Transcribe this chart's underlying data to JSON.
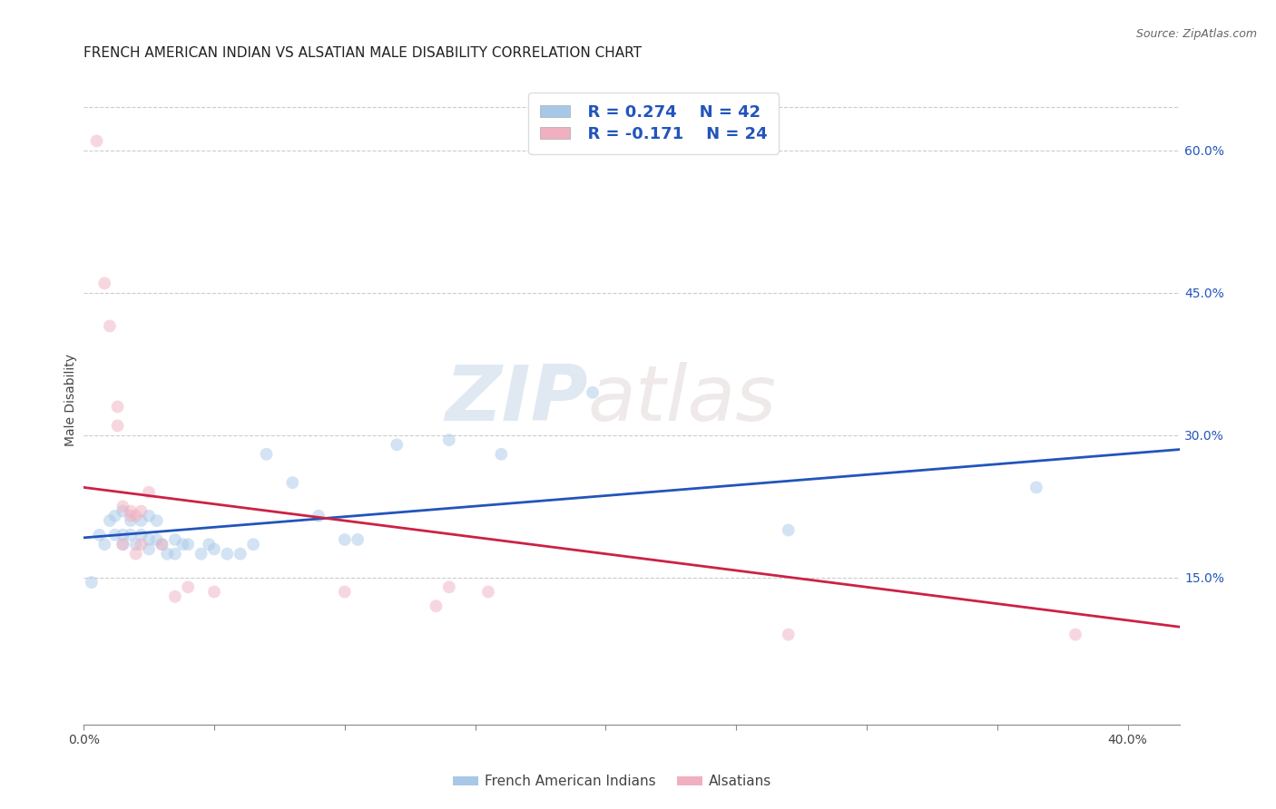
{
  "title": "FRENCH AMERICAN INDIAN VS ALSATIAN MALE DISABILITY CORRELATION CHART",
  "source": "Source: ZipAtlas.com",
  "ylabel": "Male Disability",
  "xlim": [
    0.0,
    0.42
  ],
  "ylim": [
    -0.005,
    0.68
  ],
  "xtick_labels": [
    "0.0%",
    "",
    "",
    "",
    "",
    "",
    "",
    "",
    "40.0%"
  ],
  "xtick_vals": [
    0.0,
    0.05,
    0.1,
    0.15,
    0.2,
    0.25,
    0.3,
    0.35,
    0.4
  ],
  "ytick_vals_right": [
    0.6,
    0.45,
    0.3,
    0.15
  ],
  "ytick_labels_right": [
    "60.0%",
    "45.0%",
    "30.0%",
    "15.0%"
  ],
  "grid_color": "#cccccc",
  "blue_color": "#a8c8e8",
  "pink_color": "#f0b0c0",
  "blue_line_color": "#2255bb",
  "pink_line_color": "#cc2244",
  "legend_R_blue": "R = 0.274",
  "legend_N_blue": "N = 42",
  "legend_R_pink": "R = -0.171",
  "legend_N_pink": "N = 24",
  "blue_x": [
    0.003,
    0.006,
    0.008,
    0.01,
    0.012,
    0.012,
    0.015,
    0.015,
    0.015,
    0.018,
    0.018,
    0.02,
    0.022,
    0.022,
    0.025,
    0.025,
    0.025,
    0.028,
    0.028,
    0.03,
    0.032,
    0.035,
    0.035,
    0.038,
    0.04,
    0.045,
    0.048,
    0.05,
    0.055,
    0.06,
    0.065,
    0.07,
    0.08,
    0.09,
    0.1,
    0.105,
    0.12,
    0.14,
    0.16,
    0.195,
    0.27,
    0.365
  ],
  "blue_y": [
    0.145,
    0.195,
    0.185,
    0.21,
    0.215,
    0.195,
    0.22,
    0.195,
    0.185,
    0.21,
    0.195,
    0.185,
    0.21,
    0.195,
    0.19,
    0.215,
    0.18,
    0.21,
    0.19,
    0.185,
    0.175,
    0.19,
    0.175,
    0.185,
    0.185,
    0.175,
    0.185,
    0.18,
    0.175,
    0.175,
    0.185,
    0.28,
    0.25,
    0.215,
    0.19,
    0.19,
    0.29,
    0.295,
    0.28,
    0.345,
    0.2,
    0.245
  ],
  "pink_x": [
    0.005,
    0.008,
    0.01,
    0.013,
    0.013,
    0.015,
    0.015,
    0.018,
    0.018,
    0.02,
    0.02,
    0.022,
    0.022,
    0.025,
    0.03,
    0.035,
    0.04,
    0.05,
    0.1,
    0.135,
    0.14,
    0.155,
    0.27,
    0.38
  ],
  "pink_y": [
    0.61,
    0.46,
    0.415,
    0.33,
    0.31,
    0.225,
    0.185,
    0.215,
    0.22,
    0.215,
    0.175,
    0.22,
    0.185,
    0.24,
    0.185,
    0.13,
    0.14,
    0.135,
    0.135,
    0.12,
    0.14,
    0.135,
    0.09,
    0.09
  ],
  "blue_trend_x": [
    0.0,
    0.42
  ],
  "blue_trend_y": [
    0.192,
    0.285
  ],
  "pink_trend_x": [
    0.0,
    0.42
  ],
  "pink_trend_y": [
    0.245,
    0.098
  ],
  "watermark_zip": "ZIP",
  "watermark_atlas": "atlas",
  "title_fontsize": 11,
  "marker_size": 100,
  "marker_alpha": 0.5
}
